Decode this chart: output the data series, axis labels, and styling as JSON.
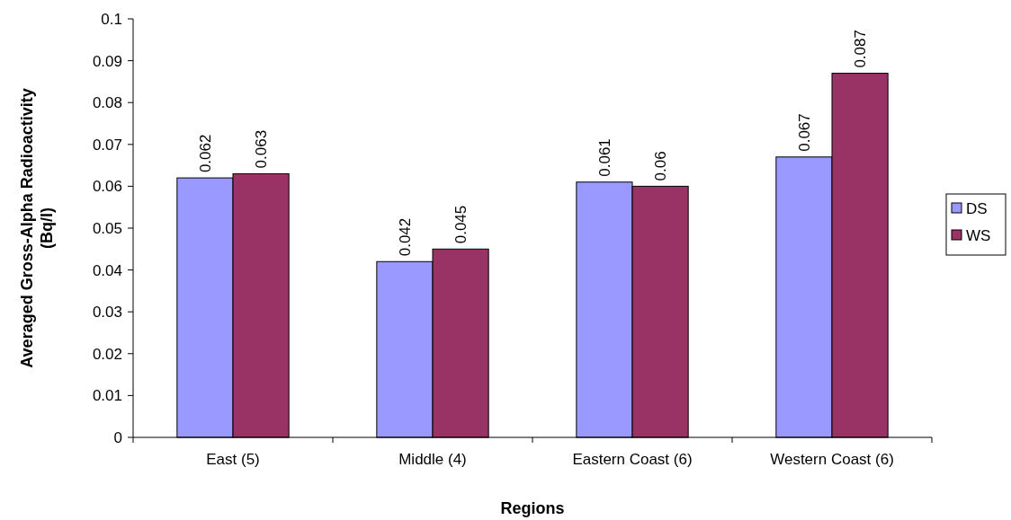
{
  "chart_data": {
    "type": "bar",
    "xlabel": "Regions",
    "ylabel": "Averaged Gross-Alpha Radioactivity (Bq/l)",
    "categories": [
      "East (5)",
      "Middle (4)",
      "Eastern Coast (6)",
      "Western Coast (6)"
    ],
    "series": [
      {
        "name": "DS",
        "color": "#9999ff",
        "values": [
          0.062,
          0.042,
          0.061,
          0.067
        ]
      },
      {
        "name": "WS",
        "color": "#993366",
        "values": [
          0.063,
          0.045,
          0.06,
          0.087
        ]
      }
    ],
    "ylim": [
      0,
      0.1
    ],
    "yticks": [
      0,
      0.01,
      0.02,
      0.03,
      0.04,
      0.05,
      0.06,
      0.07,
      0.08,
      0.09,
      0.1
    ],
    "data_labels": true,
    "legend": "right",
    "grid": false
  }
}
